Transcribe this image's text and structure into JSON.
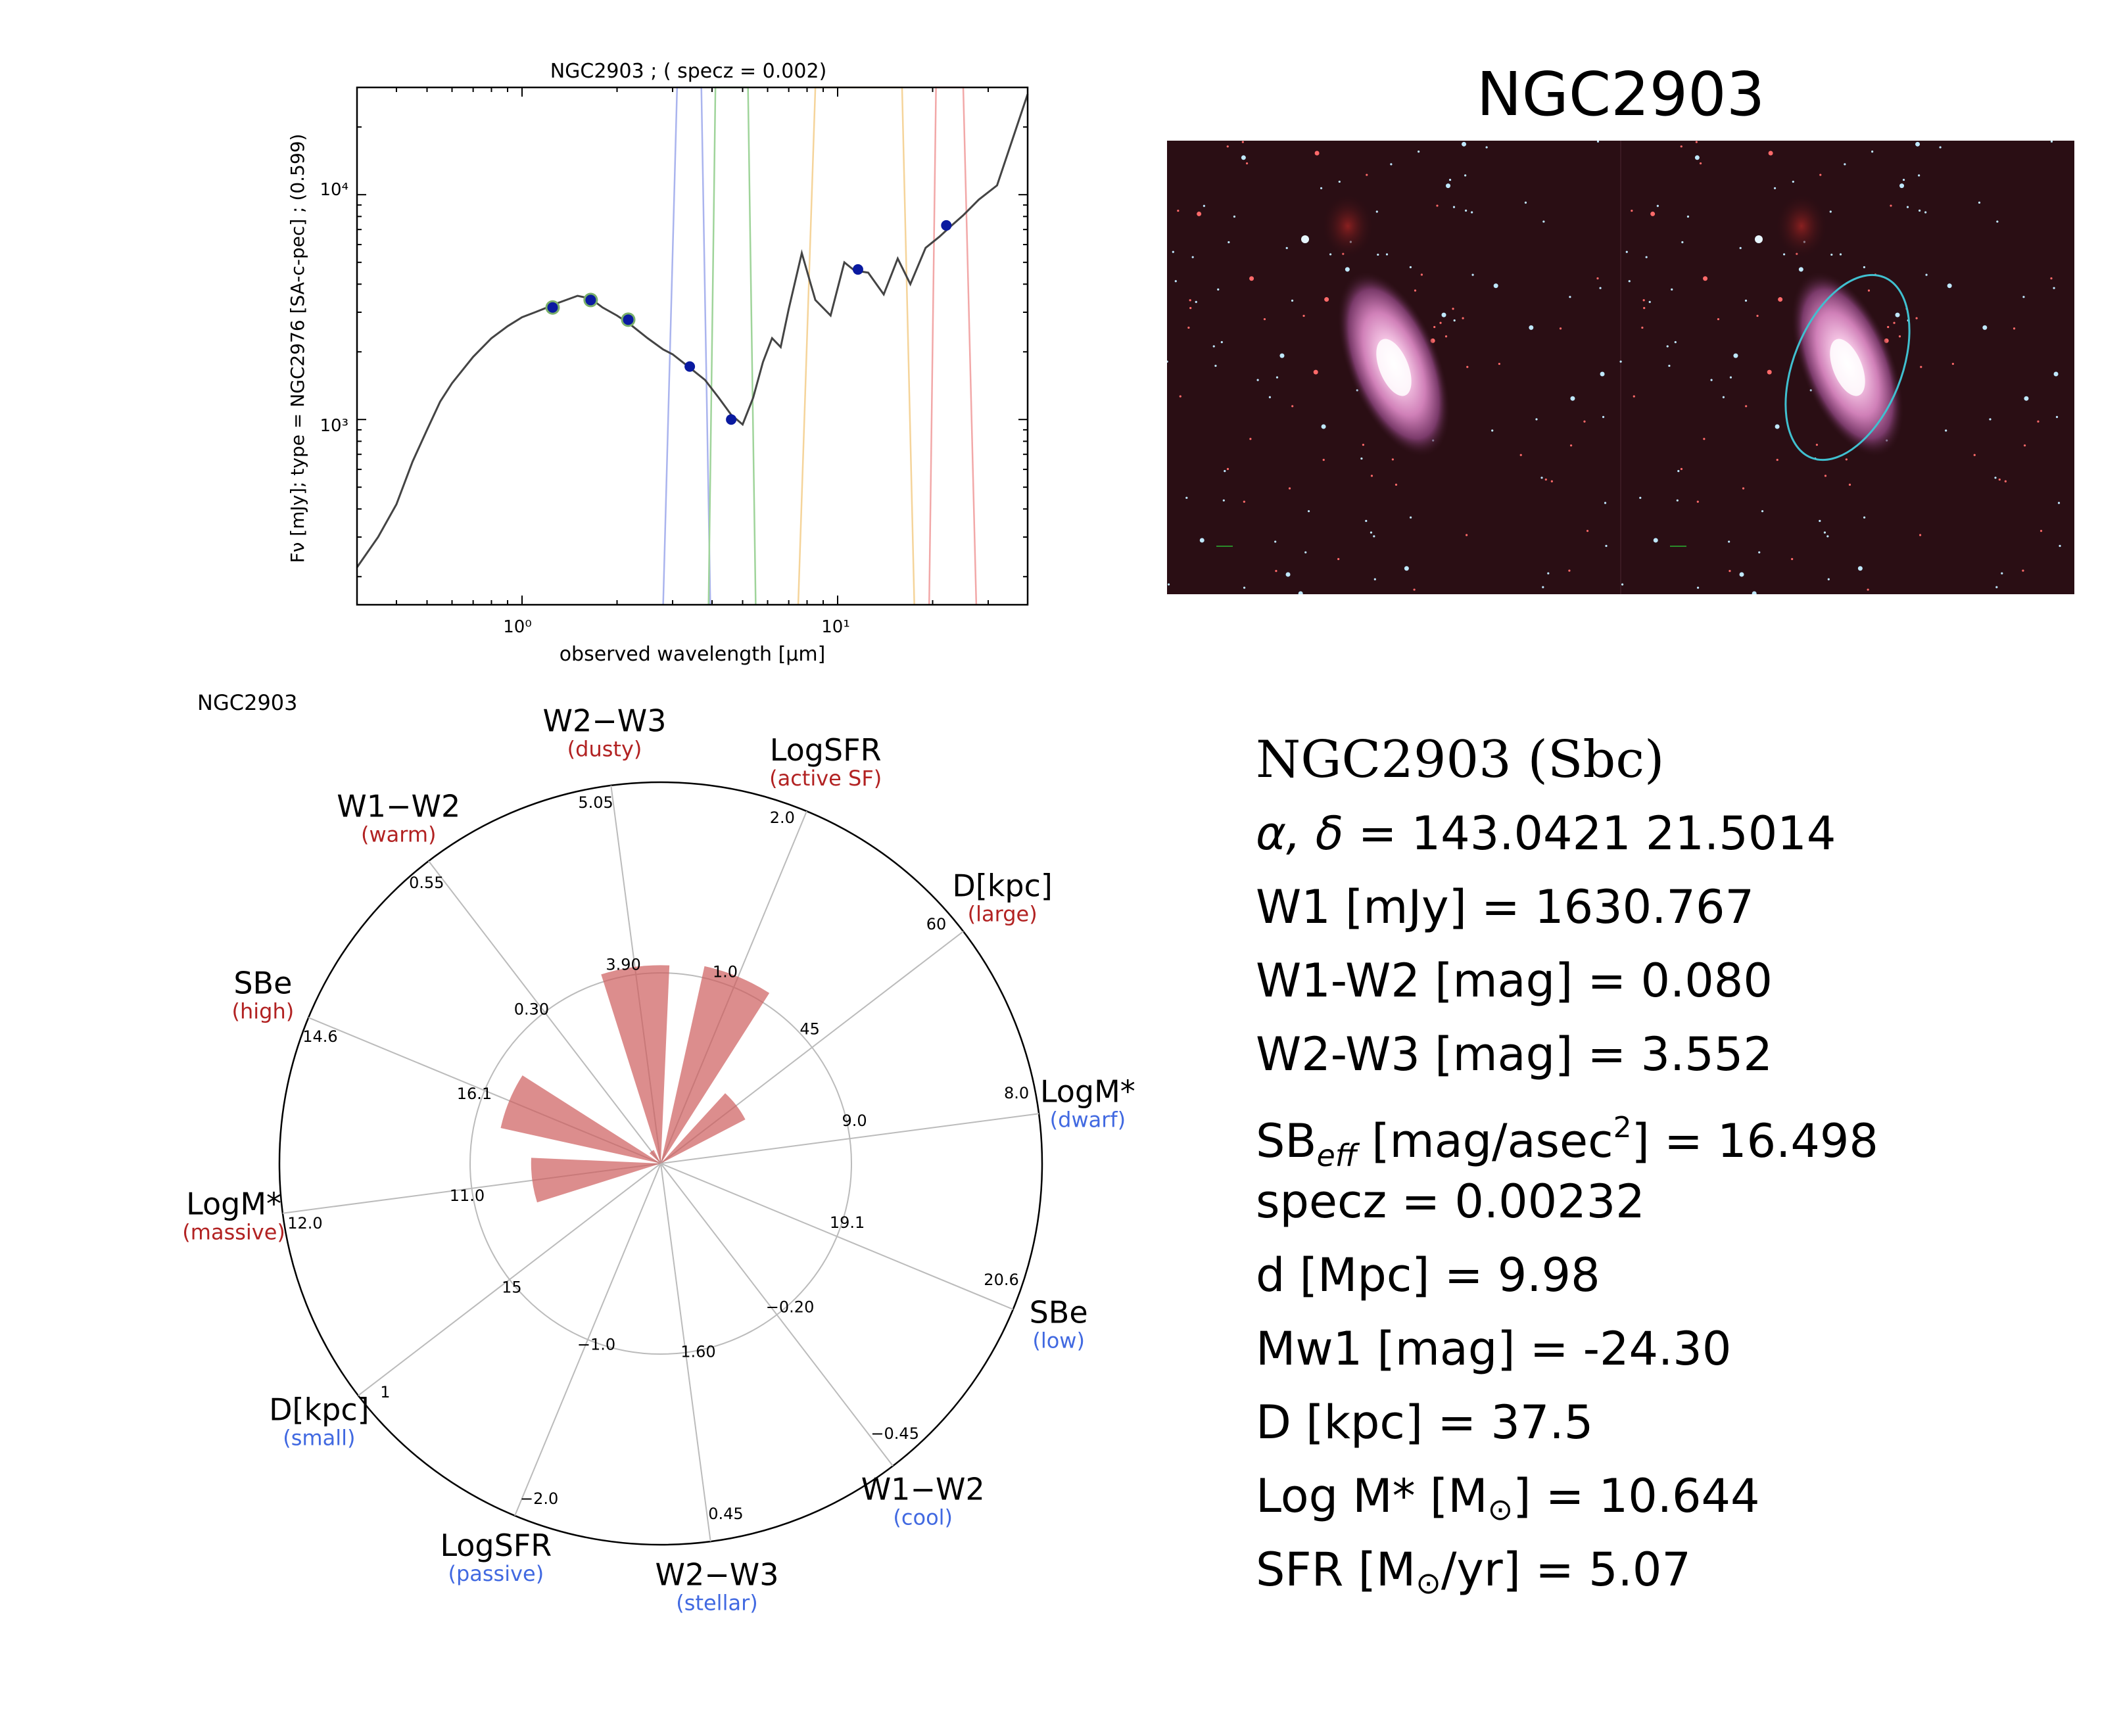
{
  "sed": {
    "title": "NGC2903 ; ( specz = 0.002)",
    "ylabel": "Fν [mJy];  type = NGC2976 [SA-c-pec] ; (0.599)",
    "xlabel": "observed wavelength [μm]",
    "xticks": [
      "10⁰",
      "10¹"
    ],
    "yticks": [
      "10³",
      "10⁴"
    ]
  },
  "image": {
    "title": "NGC2903"
  },
  "radar": {
    "caption": "NGC2903"
  },
  "info": {
    "object": "NGC2903  (Sbc)",
    "coords_label": "α, δ",
    "coords_value": " = 143.0421 21.5014",
    "w1": "W1 [mJy] = 1630.767",
    "w1w2": "W1-W2 [mag] = 0.080",
    "w2w3": "W2-W3 [mag] = 3.552",
    "sb_pre": "SB",
    "sb_sub": "eff",
    "sb_mid": " [mag/asec",
    "sb_sup": "2",
    "sb_post": "] = 16.498",
    "specz": "specz = 0.00232",
    "dist": "d [Mpc] = 9.98",
    "mw1": "Mw1 [mag] = -24.30",
    "diam": "D [kpc] = 37.5",
    "logm_pre": "Log M* [M",
    "logm_post": "] = 10.644",
    "sfr_pre": "SFR [M",
    "sfr_post": "/yr] = 5.07",
    "odot": "⊙"
  },
  "chart_data": [
    {
      "type": "line",
      "title": "NGC2903 ; ( specz = 0.002)",
      "xlabel": "observed wavelength [μm]",
      "ylabel": "Fν [mJy];  type = NGC2976 [SA-c-pec] ; (0.599)",
      "xscale": "log",
      "yscale": "log",
      "xlim": [
        0.3,
        40
      ],
      "ylim": [
        150,
        30000
      ],
      "series": [
        {
          "name": "",
          "x": [
            0.3,
            0.35,
            0.4,
            0.45,
            0.5,
            0.55,
            0.6,
            0.7,
            0.8,
            0.9,
            1.0,
            1.1,
            1.2,
            1.3,
            1.5,
            1.65,
            1.8,
            2.0,
            2.2,
            2.5,
            2.8,
            3.0,
            3.4,
            3.8,
            4.2,
            4.6,
            5.0,
            5.4,
            5.8,
            6.2,
            6.6,
            7.0,
            7.7,
            8.5,
            9.5,
            10.5,
            11.3,
            12.5,
            14,
            15.5,
            17,
            19,
            21,
            23,
            25,
            28,
            32,
            36,
            40
          ],
          "y": [
            220,
            300,
            420,
            650,
            900,
            1200,
            1450,
            1900,
            2300,
            2600,
            2850,
            3000,
            3150,
            3300,
            3550,
            3450,
            3150,
            2900,
            2650,
            2300,
            2050,
            1950,
            1700,
            1500,
            1250,
            1050,
            950,
            1250,
            1800,
            2300,
            2100,
            3100,
            5500,
            3400,
            2900,
            5000,
            4600,
            4500,
            3600,
            5200,
            4000,
            5800,
            6500,
            7300,
            8100,
            9500,
            11000,
            18000,
            28000
          ]
        }
      ],
      "photometry": {
        "x": [
          1.25,
          1.65,
          2.17,
          3.4,
          4.6,
          11.6,
          22.1
        ],
        "y": [
          3150,
          3400,
          2780,
          1720,
          1000,
          4650,
          7300
        ]
      },
      "filter_colors": [
        "#aab4ee",
        "#9fd49a",
        "#f5d49a",
        "#f2a8a8"
      ]
    },
    {
      "type": "radar",
      "title": "NGC2903",
      "axes": [
        {
          "label": "W1−W2",
          "sublabel": "(warm)",
          "inner": "0.30",
          "outer": "0.55"
        },
        {
          "label": "W2−W3",
          "sublabel": "(dusty)",
          "inner": "3.90",
          "outer": "5.05"
        },
        {
          "label": "LogSFR",
          "sublabel": "(active SF)",
          "inner": "1.0",
          "outer": "2.0"
        },
        {
          "label": "D[kpc]",
          "sublabel": "(large)",
          "inner": "45",
          "outer": "60"
        },
        {
          "label": "LogM*",
          "sublabel": "(dwarf)",
          "inner": "9.0",
          "outer": "8.0"
        },
        {
          "label": "SBe",
          "sublabel": "(low)",
          "inner": "19.1",
          "outer": "20.6"
        },
        {
          "label": "W1−W2",
          "sublabel": "(cool)",
          "inner": "−0.20",
          "outer": "−0.45"
        },
        {
          "label": "W2−W3",
          "sublabel": "(stellar)",
          "inner": "1.60",
          "outer": "0.45"
        },
        {
          "label": "LogSFR",
          "sublabel": "(passive)",
          "inner": "−1.0",
          "outer": "−2.0"
        },
        {
          "label": "D[kpc]",
          "sublabel": "(small)",
          "inner": "15",
          "outer": "1"
        },
        {
          "label": "LogM*",
          "sublabel": "(massive)",
          "inner": "11.0",
          "outer": "12.0"
        },
        {
          "label": "SBe",
          "sublabel": "(high)",
          "inner": "16.1",
          "outer": "14.6"
        }
      ],
      "values": [
        0.04,
        0.52,
        0.53,
        0.25,
        0,
        0,
        0,
        0,
        0,
        0,
        0.34,
        0.43
      ],
      "bar_color": "#cd5c5c"
    }
  ],
  "colors": {
    "warm_label": "#b22222",
    "cool_label": "#4169e1",
    "ellipse": "#40c0d0",
    "sed_line": "#444444",
    "photometry_point": "#0a1aa0"
  }
}
